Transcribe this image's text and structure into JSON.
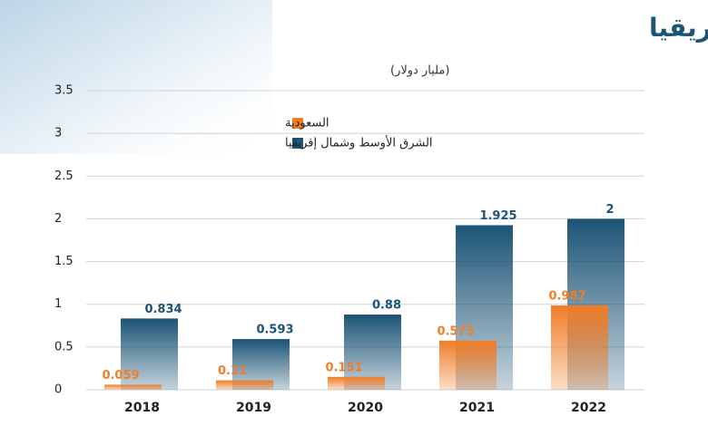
{
  "chart_data": {
    "type": "bar",
    "title": "في الشرق الأوسط وشمال إفريقيا",
    "subtitle": "(مليار دولار)",
    "categories": [
      "2018",
      "2019",
      "2020",
      "2021",
      "2022"
    ],
    "series": [
      {
        "name": "السعودية",
        "color": "#f07d28",
        "values": [
          0.059,
          0.11,
          0.151,
          0.575,
          0.987
        ]
      },
      {
        "name": "الشرق الأوسط وشمال إفريقيا",
        "color": "#1c5476",
        "values": [
          0.834,
          0.593,
          0.88,
          1.925,
          2
        ]
      }
    ],
    "ylim": [
      0,
      3.5
    ],
    "yticks": [
      0,
      0.5,
      1,
      1.5,
      2,
      2.5,
      3,
      3.5
    ],
    "grid": true,
    "legend": "top-left"
  }
}
